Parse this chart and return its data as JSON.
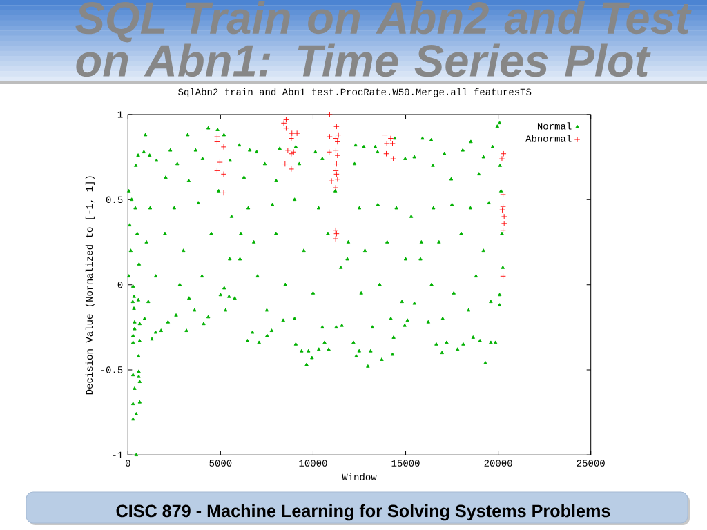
{
  "chart_data": {
    "type": "scatter",
    "title": "SQL Train on Abn2 and Test on Abn1: Time Series Plot",
    "subtitle": "SqlAbn2 train and Abn1 test.ProcRate.W50.Merge.all featuresTS",
    "xlabel": "Window",
    "ylabel": "Decision Value (Normalized to [-1, 1])",
    "annotations": [
      "CISC 879 - Machine Learning for Solving Systems Problems"
    ],
    "xlim": [
      0,
      25000
    ],
    "ylim": [
      -1,
      1
    ],
    "xticks": [
      0,
      5000,
      10000,
      15000,
      20000,
      25000
    ],
    "yticks": [
      -1,
      -0.5,
      0,
      0.5,
      1
    ],
    "legend": "top right",
    "series": [
      {
        "name": "Normal",
        "color": "#00b000",
        "marker": "triangle",
        "x": [
          275,
          335,
          560,
          260,
          325,
          360,
          635,
          360,
          275,
          635,
          275,
          575,
          585,
          275,
          585,
          635,
          360,
          635,
          275,
          450,
          275,
          450,
          50,
          200,
          400,
          100,
          500,
          150,
          600,
          50,
          1295,
          1490,
          1790,
          2165,
          3160,
          4090,
          4340,
          5000,
          5275,
          5460,
          5770,
          900,
          2600,
          3600,
          945,
          550,
          860,
          1170,
          425,
          2290,
          3225,
          3655,
          4340,
          4840,
          5185,
          1545,
          2665,
          4030,
          5520,
          2040,
          3285,
          1200,
          2500,
          3800,
          4900,
          5600,
          1000,
          2000,
          3000,
          4500,
          5500,
          1500,
          2800,
          4000,
          5200,
          1100,
          3300,
          6050,
          6100,
          6020,
          6580,
          6955,
          8200,
          9065,
          10125,
          6270,
          7390,
          9255,
          10500,
          8010,
          6500,
          7800,
          9000,
          10300,
          11200,
          6800,
          8000,
          9500,
          10800,
          7000,
          8500,
          10000,
          11500,
          7500,
          9000,
          10500,
          6455,
          6730,
          7080,
          7515,
          7760,
          8385,
          9065,
          9380,
          9650,
          9750,
          9940,
          10310,
          10620,
          10845,
          11245,
          11555,
          11850,
          11900,
          12300,
          12740,
          13355,
          14415,
          12240,
          13485,
          14975,
          15470,
          12500,
          13500,
          14500,
          15300,
          12800,
          14000,
          15000,
          12600,
          13600,
          14800,
          13200,
          14200,
          12180,
          12330,
          12490,
          12960,
          13110,
          13710,
          14290,
          14350,
          14950,
          15100,
          15470,
          15800,
          15850,
          15910,
          16380,
          18520,
          19700,
          17090,
          18085,
          19205,
          16470,
          17460,
          18955,
          16500,
          17500,
          18500,
          19500,
          16800,
          18000,
          19200,
          16400,
          17600,
          18800,
          17000,
          18400,
          19600,
          16220,
          16655,
          16965,
          17215,
          17800,
          18110,
          18645,
          19015,
          19305,
          19600,
          19850,
          20075,
          20075,
          20075,
          19950,
          20100,
          20150,
          20200,
          20250
        ],
        "values": [
          -0.01,
          -0.07,
          -0.09,
          -0.1,
          -0.14,
          -0.22,
          -0.23,
          -0.26,
          -0.3,
          -0.33,
          -0.34,
          -0.42,
          -0.51,
          -0.53,
          -0.54,
          -0.57,
          -0.61,
          -0.69,
          -0.7,
          -0.76,
          -0.79,
          -1.0,
          0.55,
          0.5,
          0.45,
          0.35,
          0.3,
          0.2,
          0.12,
          0.05,
          -0.32,
          -0.28,
          -0.27,
          -0.22,
          -0.27,
          -0.23,
          -0.19,
          -0.06,
          -0.15,
          -0.07,
          -0.08,
          -0.2,
          -0.18,
          -0.15,
          0.88,
          0.76,
          0.78,
          0.76,
          0.7,
          0.79,
          0.88,
          0.79,
          0.92,
          0.91,
          0.88,
          0.73,
          0.71,
          0.74,
          0.73,
          0.63,
          0.61,
          0.45,
          0.45,
          0.48,
          0.55,
          0.4,
          0.25,
          0.3,
          0.2,
          0.3,
          0.15,
          0.05,
          0.0,
          0.05,
          -0.02,
          -0.1,
          -0.08,
          0.15,
          0.3,
          0.82,
          0.79,
          0.78,
          0.8,
          0.81,
          0.78,
          0.63,
          0.71,
          0.71,
          0.74,
          0.61,
          0.45,
          0.47,
          0.5,
          0.45,
          0.55,
          0.25,
          0.3,
          0.2,
          0.3,
          0.05,
          0.0,
          -0.05,
          0.1,
          -0.15,
          -0.2,
          -0.25,
          -0.33,
          -0.28,
          -0.34,
          -0.3,
          -0.27,
          -0.21,
          -0.35,
          -0.39,
          -0.47,
          -0.39,
          -0.43,
          -0.38,
          -0.34,
          -0.38,
          -0.25,
          -0.24,
          0.15,
          0.25,
          0.82,
          0.81,
          0.81,
          0.86,
          0.71,
          0.78,
          0.74,
          0.75,
          0.45,
          0.47,
          0.45,
          0.4,
          0.2,
          0.25,
          0.15,
          -0.05,
          0.0,
          -0.1,
          -0.25,
          -0.2,
          -0.34,
          -0.42,
          -0.39,
          -0.48,
          -0.39,
          -0.44,
          -0.41,
          -0.31,
          -0.24,
          -0.21,
          -0.11,
          0.15,
          0.25,
          0.86,
          0.85,
          0.84,
          0.81,
          0.77,
          0.79,
          0.75,
          0.7,
          0.62,
          0.65,
          0.45,
          0.47,
          0.45,
          0.48,
          0.25,
          0.3,
          0.2,
          0.0,
          -0.05,
          0.05,
          -0.2,
          -0.15,
          -0.1,
          -0.22,
          -0.35,
          -0.4,
          -0.34,
          -0.38,
          -0.35,
          -0.31,
          -0.33,
          -0.46,
          -0.34,
          -0.34,
          -0.12,
          -0.06,
          0.95,
          0.93,
          0.7,
          0.55,
          0.3,
          0.1
        ]
      },
      {
        "name": "Abnormal",
        "color": "#ff0000",
        "marker": "cross",
        "x": [
          4815,
          4815,
          5175,
          4965,
          4815,
          5175,
          5175,
          8545,
          8420,
          8545,
          8855,
          9130,
          8820,
          8635,
          8945,
          8820,
          8485,
          8820,
          10895,
          11265,
          10895,
          11230,
          11370,
          11320,
          10870,
          11230,
          11320,
          11265,
          11230,
          11265,
          10995,
          11320,
          11220,
          11220,
          11265,
          11220,
          13880,
          14195,
          13980,
          14290,
          13955,
          14330,
          20285,
          20200,
          20260,
          20260,
          20220,
          20260,
          20320,
          20320,
          20260,
          20260
        ],
        "values": [
          0.87,
          0.84,
          0.81,
          0.72,
          0.67,
          0.65,
          0.54,
          0.97,
          0.95,
          0.92,
          0.89,
          0.89,
          0.86,
          0.79,
          0.78,
          0.77,
          0.71,
          0.68,
          1.0,
          0.93,
          0.87,
          0.86,
          0.88,
          0.84,
          0.78,
          0.79,
          0.76,
          0.71,
          0.67,
          0.65,
          0.61,
          0.62,
          0.57,
          0.32,
          0.3,
          0.27,
          0.88,
          0.86,
          0.83,
          0.83,
          0.77,
          0.74,
          0.77,
          0.74,
          0.53,
          0.46,
          0.44,
          0.41,
          0.4,
          0.36,
          0.32,
          0.05
        ]
      }
    ]
  }
}
